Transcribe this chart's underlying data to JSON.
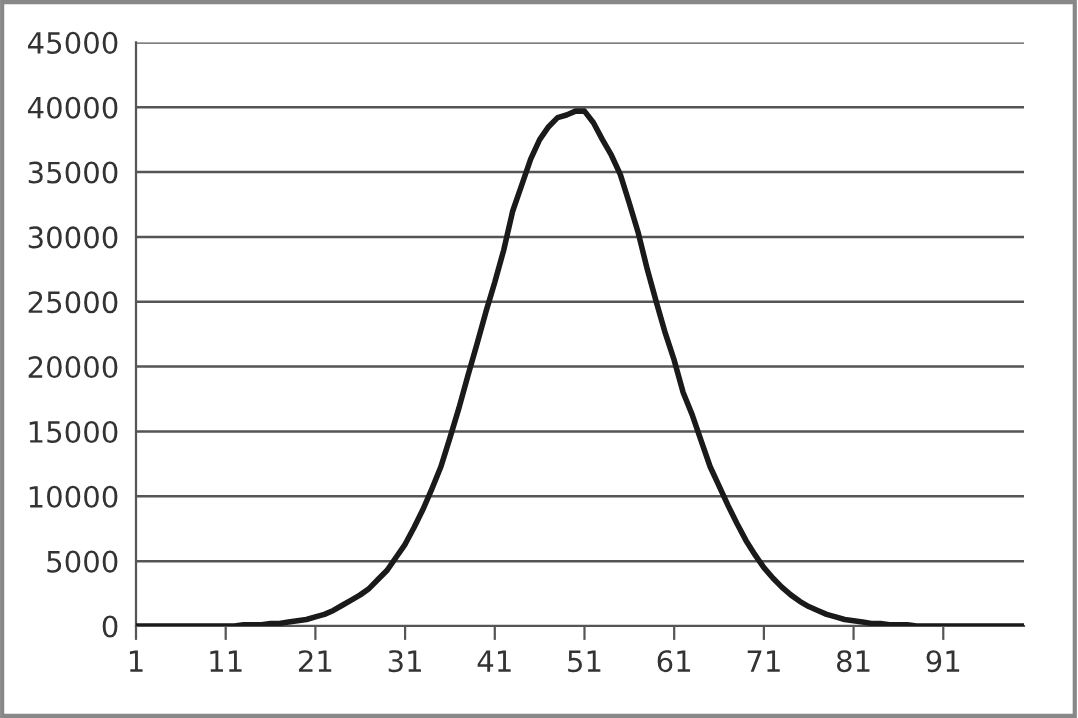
{
  "chart_data": {
    "type": "line",
    "categories": [
      "1",
      null,
      null,
      null,
      null,
      null,
      null,
      null,
      null,
      null,
      "11",
      null,
      null,
      null,
      null,
      null,
      null,
      null,
      null,
      null,
      "21",
      null,
      null,
      null,
      null,
      null,
      null,
      null,
      null,
      null,
      "31",
      null,
      null,
      null,
      null,
      null,
      null,
      null,
      null,
      null,
      "41",
      null,
      null,
      null,
      null,
      null,
      null,
      null,
      null,
      null,
      "51",
      null,
      null,
      null,
      null,
      null,
      null,
      null,
      null,
      null,
      "61",
      null,
      null,
      null,
      null,
      null,
      null,
      null,
      null,
      null,
      "71",
      null,
      null,
      null,
      null,
      null,
      null,
      null,
      null,
      null,
      "81",
      null,
      null,
      null,
      null,
      null,
      null,
      null,
      null,
      null,
      "91",
      null,
      null,
      null,
      null,
      null,
      null,
      null,
      null,
      null
    ],
    "series": [
      {
        "color": "#1a1a1a",
        "values": [
          0,
          0,
          0,
          0,
          0,
          0,
          0,
          0,
          0,
          0,
          0,
          0,
          100,
          100,
          100,
          200,
          200,
          300,
          400,
          500,
          700,
          900,
          1200,
          1600,
          2000,
          2400,
          2900,
          3600,
          4300,
          5300,
          6300,
          7600,
          9000,
          10600,
          12300,
          14500,
          16800,
          19300,
          21700,
          24200,
          26500,
          29000,
          32000,
          34000,
          36000,
          37500,
          38500,
          39200,
          39400,
          39700,
          39700,
          38800,
          37500,
          36300,
          34800,
          32600,
          30300,
          27500,
          25000,
          22600,
          20500,
          18000,
          16300,
          14300,
          12300,
          10800,
          9300,
          7900,
          6600,
          5500,
          4500,
          3700,
          3000,
          2400,
          1900,
          1500,
          1200,
          900,
          700,
          500,
          400,
          300,
          200,
          200,
          100,
          100,
          100,
          0,
          0,
          0,
          0,
          0,
          0,
          0,
          0,
          0,
          0,
          0,
          0,
          0
        ]
      }
    ],
    "ylim": [
      0,
      45000
    ],
    "yticks": [
      0,
      5000,
      10000,
      15000,
      20000,
      25000,
      30000,
      35000,
      40000,
      45000
    ],
    "grid": "y",
    "legend": false,
    "marker": "none",
    "line_style": "solid"
  }
}
